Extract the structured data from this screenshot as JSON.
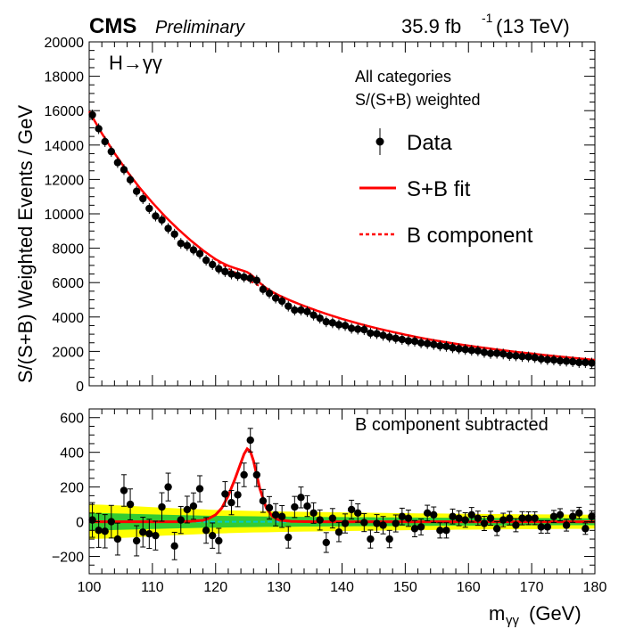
{
  "header": {
    "experiment": "CMS",
    "status": "Preliminary",
    "lumi": "35.9 fb",
    "lumi_exp": "-1",
    "energy": "(13 TeV)"
  },
  "chart_data": [
    {
      "type": "scatter",
      "name": "main-panel",
      "channel": "H→γγ",
      "ylabel": "S/(S+B) Weighted Events / GeV",
      "xlim": [
        100,
        180
      ],
      "ylim": [
        0,
        20000
      ],
      "yticks": [
        0,
        2000,
        4000,
        6000,
        8000,
        10000,
        12000,
        14000,
        16000,
        18000,
        20000
      ],
      "legend": {
        "header1": "All categories",
        "header2": "S/(S+B) weighted",
        "data_label": "Data",
        "fit_label": "S+B fit",
        "bkg_label": "B component"
      },
      "x": [
        100.5,
        101.5,
        102.5,
        103.5,
        104.5,
        105.5,
        106.5,
        107.5,
        108.5,
        109.5,
        110.5,
        111.5,
        112.5,
        113.5,
        114.5,
        115.5,
        116.5,
        117.5,
        118.5,
        119.5,
        120.5,
        121.5,
        122.5,
        123.5,
        124.5,
        125.5,
        126.5,
        127.5,
        128.5,
        129.5,
        130.5,
        131.5,
        132.5,
        133.5,
        134.5,
        135.5,
        136.5,
        137.5,
        138.5,
        139.5,
        140.5,
        141.5,
        142.5,
        143.5,
        144.5,
        145.5,
        146.5,
        147.5,
        148.5,
        149.5,
        150.5,
        151.5,
        152.5,
        153.5,
        154.5,
        155.5,
        156.5,
        157.5,
        158.5,
        159.5,
        160.5,
        161.5,
        162.5,
        163.5,
        164.5,
        165.5,
        166.5,
        167.5,
        168.5,
        169.5,
        170.5,
        171.5,
        172.5,
        173.5,
        174.5,
        175.5,
        176.5,
        177.5,
        178.5,
        179.5
      ],
      "data": [
        15750,
        14950,
        14200,
        13620,
        12980,
        12570,
        11980,
        11310,
        10880,
        10310,
        9870,
        9640,
        9150,
        8820,
        8280,
        8150,
        7900,
        7680,
        7300,
        7050,
        6800,
        6640,
        6500,
        6410,
        6320,
        6250,
        6130,
        5610,
        5380,
        5100,
        4920,
        4630,
        4400,
        4400,
        4310,
        4110,
        3930,
        3720,
        3660,
        3550,
        3500,
        3340,
        3290,
        3260,
        3060,
        3030,
        2930,
        2830,
        2760,
        2690,
        2610,
        2590,
        2490,
        2450,
        2400,
        2320,
        2290,
        2210,
        2150,
        2110,
        2060,
        2030,
        1940,
        1880,
        1890,
        1850,
        1760,
        1740,
        1700,
        1680,
        1640,
        1560,
        1520,
        1500,
        1450,
        1430,
        1400,
        1350,
        1350,
        1320
      ],
      "bkg_curve": {
        "x": [
          100,
          102,
          104,
          106,
          108,
          110,
          112,
          114,
          116,
          118,
          120,
          122,
          124,
          126,
          128,
          130,
          132,
          134,
          136,
          138,
          140,
          142,
          144,
          146,
          148,
          150,
          152,
          154,
          156,
          158,
          160,
          162,
          164,
          166,
          168,
          170,
          172,
          174,
          176,
          178,
          180
        ],
        "y": [
          15950,
          14680,
          13530,
          12470,
          11510,
          10650,
          9850,
          9130,
          8470,
          7870,
          7320,
          6830,
          6390,
          5980,
          5600,
          5250,
          4930,
          4640,
          4370,
          4120,
          3890,
          3680,
          3480,
          3300,
          3130,
          2970,
          2820,
          2680,
          2560,
          2440,
          2330,
          2230,
          2130,
          2040,
          1950,
          1870,
          1790,
          1710,
          1640,
          1570,
          1500
        ]
      }
    },
    {
      "type": "scatter",
      "name": "residual-panel",
      "annotation": "B component subtracted",
      "xlabel": "m",
      "xlabel_sub": "γγ",
      "xlabel_unit": "(GeV)",
      "xlim": [
        100,
        180
      ],
      "ylim": [
        -300,
        650
      ],
      "yticks": [
        -200,
        0,
        200,
        400,
        600
      ],
      "xticks": [
        100,
        110,
        120,
        130,
        140,
        150,
        160,
        170,
        180
      ],
      "x": [
        100.5,
        101.5,
        102.5,
        103.5,
        104.5,
        105.5,
        106.5,
        107.5,
        108.5,
        109.5,
        110.5,
        111.5,
        112.5,
        113.5,
        114.5,
        115.5,
        116.5,
        117.5,
        118.5,
        119.5,
        120.5,
        121.5,
        122.5,
        123.5,
        124.5,
        125.5,
        126.5,
        127.5,
        128.5,
        129.5,
        130.5,
        131.5,
        132.5,
        133.5,
        134.5,
        135.5,
        136.5,
        137.5,
        138.5,
        139.5,
        140.5,
        141.5,
        142.5,
        143.5,
        144.5,
        145.5,
        146.5,
        147.5,
        148.5,
        149.5,
        150.5,
        151.5,
        152.5,
        153.5,
        154.5,
        155.5,
        156.5,
        157.5,
        158.5,
        159.5,
        160.5,
        161.5,
        162.5,
        163.5,
        164.5,
        165.5,
        166.5,
        167.5,
        168.5,
        169.5,
        170.5,
        171.5,
        172.5,
        173.5,
        174.5,
        175.5,
        176.5,
        177.5,
        178.5,
        179.5
      ],
      "data": [
        10,
        -50,
        -55,
        0,
        -100,
        180,
        100,
        -110,
        -60,
        -70,
        -80,
        85,
        200,
        -140,
        10,
        70,
        90,
        190,
        -50,
        -80,
        -110,
        160,
        110,
        155,
        270,
        470,
        270,
        120,
        80,
        40,
        30,
        -90,
        85,
        140,
        90,
        50,
        10,
        -120,
        20,
        -60,
        -10,
        70,
        50,
        -5,
        -100,
        -10,
        -20,
        -100,
        -10,
        30,
        20,
        -40,
        -30,
        50,
        40,
        -50,
        -50,
        30,
        20,
        10,
        40,
        20,
        -10,
        20,
        -40,
        10,
        20,
        -20,
        20,
        20,
        20,
        -30,
        -30,
        30,
        40,
        -20,
        30,
        50,
        -40,
        30
      ],
      "errors": [
        100,
        98,
        96,
        94,
        92,
        91,
        89,
        87,
        86,
        84,
        83,
        82,
        80,
        79,
        78,
        77,
        76,
        75,
        74,
        73,
        72,
        71,
        70,
        69,
        68,
        68,
        67,
        66,
        65,
        64,
        63,
        62,
        61,
        60,
        60,
        59,
        58,
        57,
        56,
        55,
        55,
        54,
        53,
        52,
        52,
        51,
        50,
        50,
        49,
        48,
        47,
        47,
        46,
        45,
        45,
        44,
        44,
        43,
        43,
        42,
        42,
        41,
        41,
        40,
        40,
        39,
        39,
        38,
        38,
        37,
        37,
        36,
        36,
        35,
        35,
        34,
        34,
        33,
        33,
        33
      ],
      "signal_curve": {
        "x": [
          100,
          105,
          110,
          114,
          116,
          118,
          119,
          120,
          121,
          122,
          123,
          124,
          124.5,
          125,
          125.5,
          126,
          126.5,
          127,
          128,
          129,
          130,
          132,
          135,
          140,
          150,
          160,
          170,
          180
        ],
        "y": [
          0,
          0,
          0,
          0,
          2,
          8,
          20,
          40,
          80,
          150,
          240,
          340,
          390,
          420,
          405,
          350,
          270,
          190,
          80,
          30,
          10,
          2,
          0,
          0,
          0,
          0,
          0,
          0
        ]
      },
      "band_1sigma": [
        50,
        50,
        48,
        46,
        44,
        42,
        40,
        38,
        37,
        35,
        34,
        33,
        32,
        31,
        30,
        30,
        29,
        28,
        28,
        27,
        27,
        26,
        26,
        25,
        25,
        24,
        24,
        24,
        23,
        23,
        23,
        22,
        22,
        22,
        21,
        21,
        21,
        20,
        20,
        20,
        20
      ],
      "band_2sigma": [
        100,
        98,
        95,
        92,
        88,
        84,
        80,
        77,
        74,
        71,
        68,
        66,
        64,
        62,
        61,
        59,
        58,
        57,
        56,
        55,
        54,
        53,
        52,
        51,
        50,
        49,
        48,
        48,
        47,
        46,
        46,
        45,
        44,
        44,
        43,
        43,
        42,
        42,
        41,
        41,
        40
      ],
      "band_x": [
        100,
        102,
        104,
        106,
        108,
        110,
        112,
        114,
        116,
        118,
        120,
        122,
        124,
        126,
        128,
        130,
        132,
        134,
        136,
        138,
        140,
        142,
        144,
        146,
        148,
        150,
        152,
        154,
        156,
        158,
        160,
        162,
        164,
        166,
        168,
        170,
        172,
        174,
        176,
        178,
        180
      ],
      "colors": {
        "band_1sigma": "#33cc33",
        "band_2sigma": "#ffff00",
        "fit": "#ff0000",
        "zero_line": "#00cccc"
      }
    }
  ]
}
